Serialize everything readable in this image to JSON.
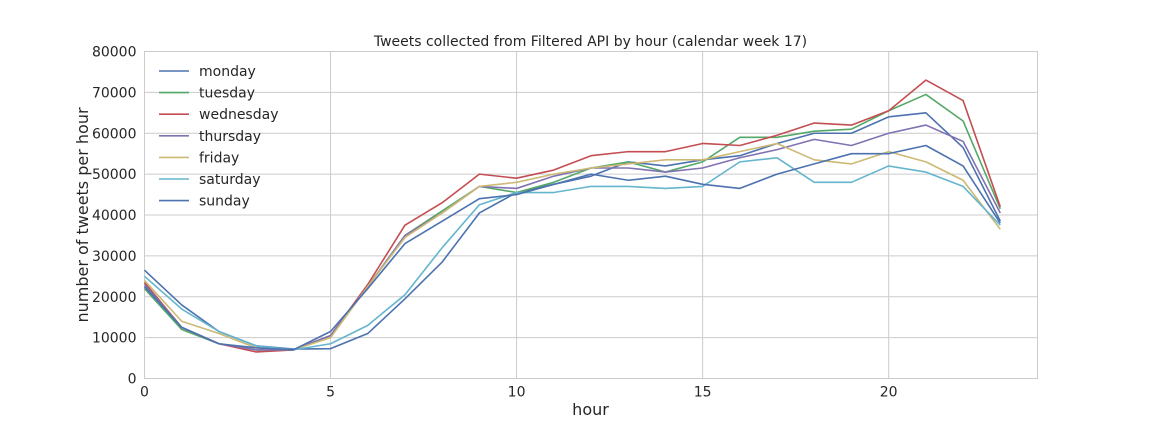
{
  "chart_data": {
    "type": "line",
    "title": "Tweets collected from Filtered API by hour (calendar week 17)",
    "xlabel": "hour",
    "ylabel": "number of tweets per hour",
    "xlim": [
      0,
      24
    ],
    "ylim": [
      0,
      80000
    ],
    "xticks": [
      0,
      5,
      10,
      15,
      20
    ],
    "yticks": [
      0,
      10000,
      20000,
      30000,
      40000,
      50000,
      60000,
      70000,
      80000
    ],
    "grid": true,
    "legend_position": "upper-left",
    "x": [
      0,
      1,
      2,
      3,
      4,
      5,
      6,
      7,
      8,
      9,
      10,
      11,
      12,
      13,
      14,
      15,
      16,
      17,
      18,
      19,
      20,
      21,
      22,
      23
    ],
    "series": [
      {
        "name": "monday",
        "color": "#4c72b0",
        "values": [
          26500,
          18000,
          11500,
          8000,
          7200,
          7300,
          11000,
          19500,
          28500,
          40500,
          45500,
          47500,
          49500,
          53000,
          52000,
          53500,
          54500,
          57500,
          60000,
          60000,
          64000,
          65000,
          56500,
          38500
        ]
      },
      {
        "name": "tuesday",
        "color": "#55a868",
        "values": [
          22000,
          12000,
          8500,
          7000,
          7000,
          10500,
          22500,
          35000,
          41000,
          47000,
          45500,
          48000,
          51500,
          53000,
          50500,
          53000,
          59000,
          59000,
          60500,
          61000,
          65500,
          69500,
          63000,
          41500
        ]
      },
      {
        "name": "wednesday",
        "color": "#c44e52",
        "values": [
          23500,
          12500,
          8500,
          6500,
          7000,
          10500,
          23000,
          37500,
          43000,
          50000,
          49000,
          51000,
          54500,
          55500,
          55500,
          57500,
          57000,
          59500,
          62500,
          62000,
          65500,
          73000,
          68000,
          42000
        ]
      },
      {
        "name": "thursday",
        "color": "#8172b2",
        "values": [
          23000,
          12500,
          8500,
          7000,
          7000,
          10500,
          22500,
          35000,
          40500,
          47000,
          46500,
          49500,
          51500,
          51500,
          50500,
          51500,
          54000,
          56000,
          58500,
          57000,
          60000,
          62000,
          58000,
          40500
        ]
      },
      {
        "name": "friday",
        "color": "#ccb974",
        "values": [
          24000,
          14000,
          11000,
          7500,
          7000,
          10000,
          22500,
          34500,
          40500,
          47000,
          48000,
          50000,
          51500,
          52500,
          53500,
          53500,
          55500,
          57500,
          53500,
          52500,
          55500,
          53000,
          48500,
          36500
        ]
      },
      {
        "name": "saturday",
        "color": "#64b5cd",
        "values": [
          25000,
          17000,
          11500,
          8000,
          7000,
          8500,
          13000,
          20500,
          32000,
          42500,
          45500,
          45500,
          47000,
          47000,
          46500,
          47000,
          53000,
          54000,
          48000,
          48000,
          52000,
          50500,
          47000,
          37500
        ]
      },
      {
        "name": "sunday",
        "color": "#4c72b0",
        "values": [
          22500,
          12500,
          8500,
          7500,
          7000,
          11500,
          22000,
          33000,
          38500,
          44000,
          45000,
          47500,
          50000,
          48500,
          49500,
          47500,
          46500,
          50000,
          52500,
          55000,
          55000,
          57000,
          52000,
          38000
        ]
      }
    ]
  }
}
